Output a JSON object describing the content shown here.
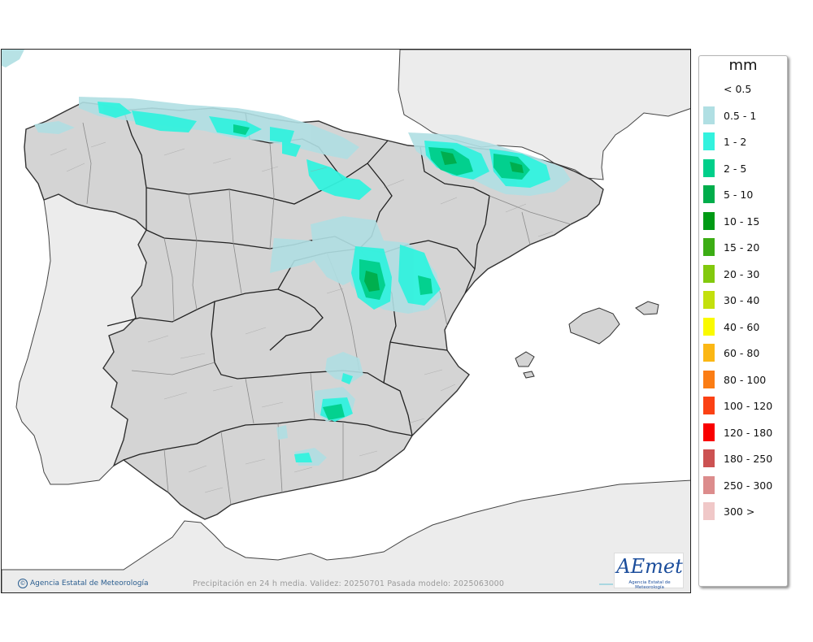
{
  "legend": {
    "title": "mm",
    "items": [
      {
        "label": "< 0.5",
        "color": ""
      },
      {
        "label": "0.5 - 1",
        "color": "#b0dfe3"
      },
      {
        "label": "1 - 2",
        "color": "#33f2de"
      },
      {
        "label": "2 - 5",
        "color": "#00cf8a"
      },
      {
        "label": "5 - 10",
        "color": "#00ad4b"
      },
      {
        "label": "10 - 15",
        "color": "#009a14"
      },
      {
        "label": "15 - 20",
        "color": "#3cad14"
      },
      {
        "label": "20 - 30",
        "color": "#82c90d"
      },
      {
        "label": "30 - 40",
        "color": "#c3e00d"
      },
      {
        "label": "40 - 60",
        "color": "#fafa00"
      },
      {
        "label": "60 - 80",
        "color": "#fbb714"
      },
      {
        "label": "80 - 100",
        "color": "#fb7d14"
      },
      {
        "label": "100 - 120",
        "color": "#fb4114"
      },
      {
        "label": "120 - 180",
        "color": "#f90000"
      },
      {
        "label": "180 - 250",
        "color": "#cc5252"
      },
      {
        "label": "250 - 300",
        "color": "#dc8c8c"
      },
      {
        "label": "300 >",
        "color": "#f0c8c8"
      }
    ]
  },
  "caption": "Precipitación en 24 h media. Validez: 20250701 Pasada modelo: 2025063000",
  "copyright": "Agencia Estatal de Meteorología",
  "logo": {
    "wordmark": "AEmet",
    "subtitle": "Agencia Estatal de Meteorología"
  },
  "map": {
    "land_color": "#d4d4d4",
    "neighbor_land_color": "#ececec",
    "sea_color": "#ffffff"
  }
}
